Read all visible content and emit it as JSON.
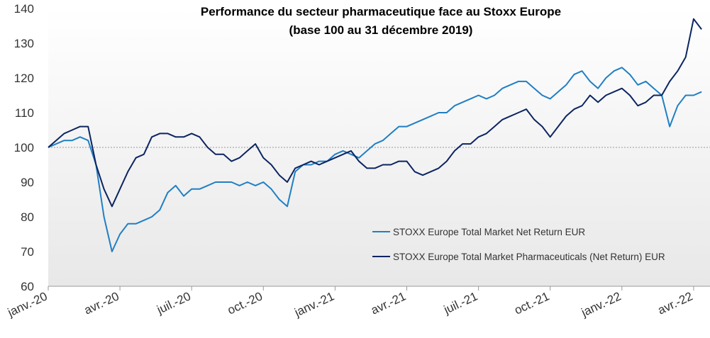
{
  "chart_data": {
    "type": "line",
    "title": "Performance du secteur pharmaceutique face au Stoxx Europe",
    "subtitle": "(base 100 au 31 décembre 2019)",
    "categories": [
      "janv.-20",
      null,
      null,
      null,
      null,
      null,
      null,
      null,
      null,
      "avr.-20",
      null,
      null,
      null,
      null,
      null,
      null,
      null,
      null,
      "juil.-20",
      null,
      null,
      null,
      null,
      null,
      null,
      null,
      null,
      "oct.-20",
      null,
      null,
      null,
      null,
      null,
      null,
      null,
      null,
      "janv.-21",
      null,
      null,
      null,
      null,
      null,
      null,
      null,
      null,
      "avr.-21",
      null,
      null,
      null,
      null,
      null,
      null,
      null,
      null,
      "juil.-21",
      null,
      null,
      null,
      null,
      null,
      null,
      null,
      null,
      "oct.-21",
      null,
      null,
      null,
      null,
      null,
      null,
      null,
      null,
      "janv.-22",
      null,
      null,
      null,
      null,
      null,
      null,
      null,
      null,
      "avr.-22",
      null
    ],
    "series": [
      {
        "name": "STOXX Europe Total Market Net Return EUR",
        "color": "#1f7fc4",
        "values": [
          100,
          101,
          102,
          102,
          103,
          102,
          95,
          80,
          70,
          75,
          78,
          78,
          79,
          80,
          82,
          87,
          89,
          86,
          88,
          88,
          89,
          90,
          90,
          90,
          89,
          90,
          89,
          90,
          88,
          85,
          83,
          93,
          95,
          95,
          96,
          96,
          98,
          99,
          98,
          97,
          99,
          101,
          102,
          104,
          106,
          106,
          107,
          108,
          109,
          110,
          110,
          112,
          113,
          114,
          115,
          114,
          115,
          117,
          118,
          119,
          119,
          117,
          115,
          114,
          116,
          118,
          121,
          122,
          119,
          117,
          120,
          122,
          123,
          121,
          118,
          119,
          117,
          115,
          106,
          112,
          115,
          115,
          116
        ]
      },
      {
        "name": "STOXX Europe Total Market Pharmaceuticals (Net Return) EUR",
        "color": "#0c2461",
        "values": [
          100,
          102,
          104,
          105,
          106,
          106,
          95,
          88,
          83,
          88,
          93,
          97,
          98,
          103,
          104,
          104,
          103,
          103,
          104,
          103,
          100,
          98,
          98,
          96,
          97,
          99,
          101,
          97,
          95,
          92,
          90,
          94,
          95,
          96,
          95,
          96,
          97,
          98,
          99,
          96,
          94,
          94,
          95,
          95,
          96,
          96,
          93,
          92,
          93,
          94,
          96,
          99,
          101,
          101,
          103,
          104,
          106,
          108,
          109,
          110,
          111,
          108,
          106,
          103,
          106,
          109,
          111,
          112,
          115,
          113,
          115,
          116,
          117,
          115,
          112,
          113,
          115,
          115,
          119,
          122,
          126,
          137,
          134
        ]
      }
    ],
    "ylim": [
      60,
      140
    ],
    "yticks": [
      60,
      70,
      80,
      90,
      100,
      110,
      120,
      130,
      140
    ],
    "reference_line": 100,
    "grid": false
  }
}
